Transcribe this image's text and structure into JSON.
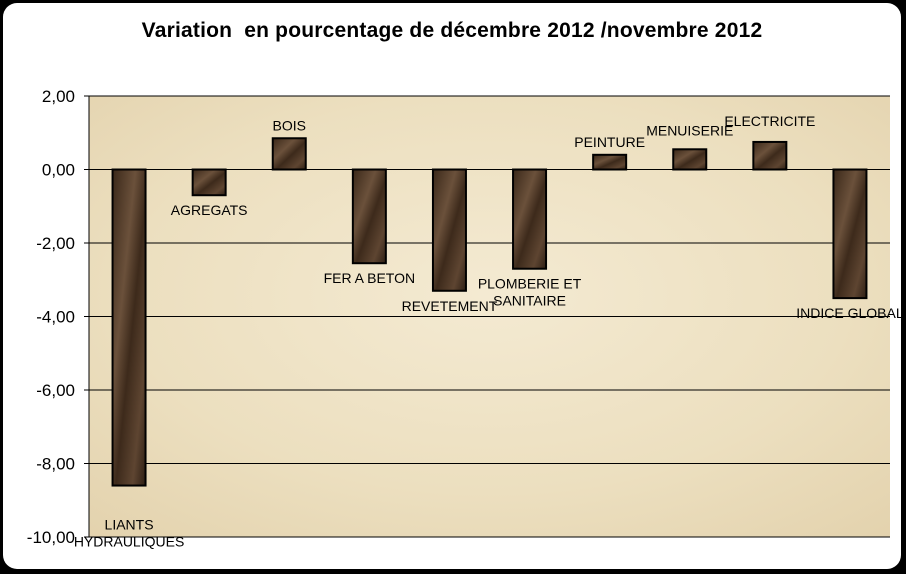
{
  "chart_data": {
    "type": "bar",
    "title": "Variation  en pourcentage de décembre 2012 /novembre 2012",
    "xlabel": "",
    "ylabel": "",
    "ylim": [
      -10,
      2
    ],
    "yticks": [
      2,
      0,
      -2,
      -4,
      -6,
      -8,
      -10
    ],
    "ytick_labels": [
      "2,00",
      "0,00",
      "-2,00",
      "-4,00",
      "-6,00",
      "-8,00",
      "-10,00"
    ],
    "grid": true,
    "legend": "none",
    "categories": [
      "LIANTS HYDRAULIQUES",
      "AGREGATS",
      "BOIS",
      "FER A BETON",
      "REVETEMENT",
      "PLOMBERIE  ET SANITAIRE",
      "PEINTURE",
      "MENUISERIE",
      "ELECTRICITE",
      "INDICE GLOBAL"
    ],
    "category_label_lines": [
      [
        "LIANTS",
        "HYDRAULIQUES"
      ],
      [
        "AGREGATS"
      ],
      [
        "BOIS"
      ],
      [
        "FER A BETON"
      ],
      [
        "REVETEMENT"
      ],
      [
        "PLOMBERIE  ET",
        "SANITAIRE"
      ],
      [
        "PEINTURE"
      ],
      [
        "MENUISERIE"
      ],
      [
        "ELECTRICITE"
      ],
      [
        "INDICE GLOBAL"
      ]
    ],
    "values": [
      -8.6,
      -0.7,
      0.85,
      -2.55,
      -3.3,
      -2.7,
      0.4,
      0.55,
      0.75,
      -3.5
    ],
    "colors": {
      "bar_fill": "#4a3526",
      "bar_edge": "#000000",
      "plot_background": "#efe3c6",
      "gridline": "#000000"
    }
  }
}
